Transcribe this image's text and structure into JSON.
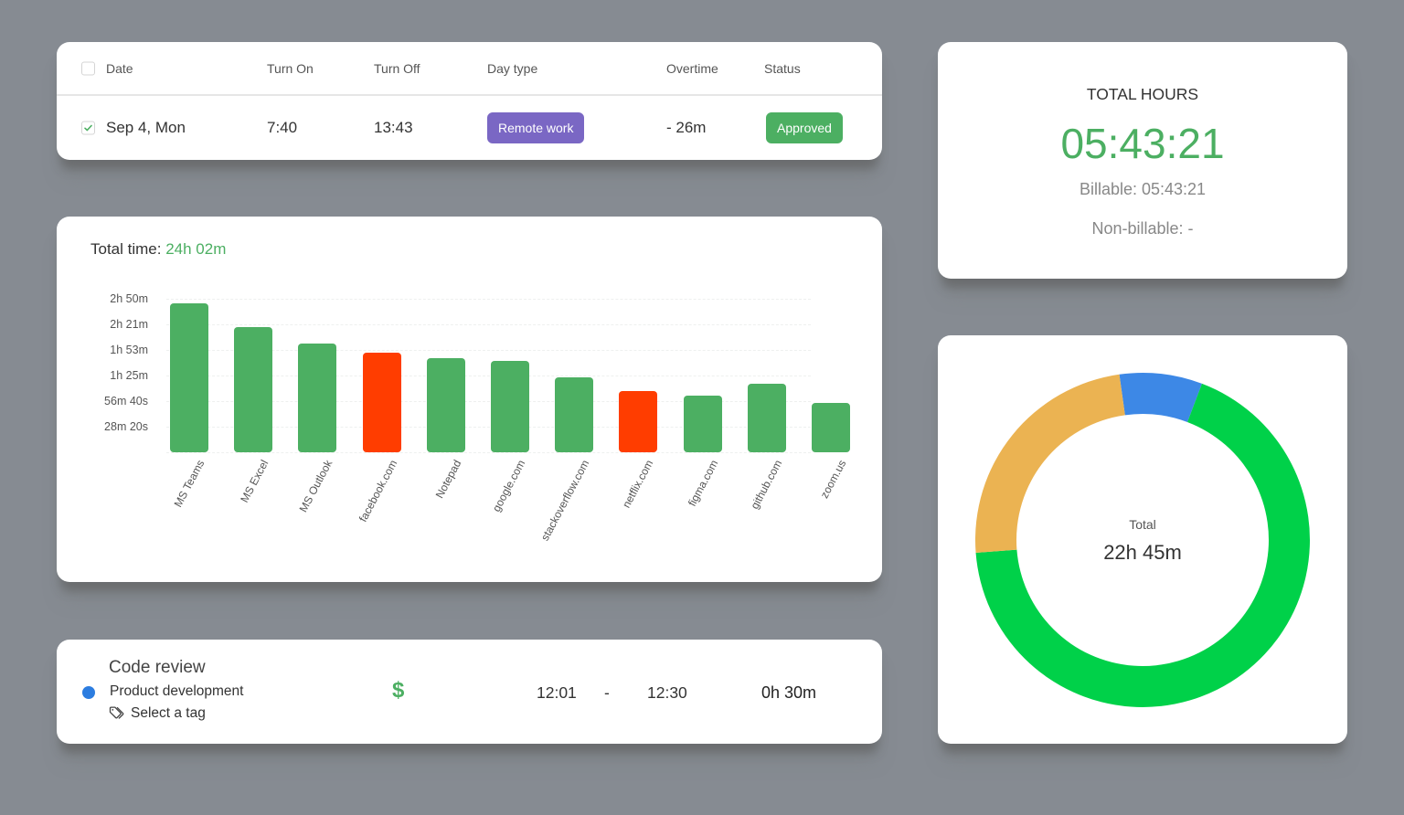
{
  "timesheet": {
    "columns": [
      "Date",
      "Turn On",
      "Turn Off",
      "Day type",
      "Overtime",
      "Status"
    ],
    "rows": [
      {
        "checked": true,
        "date": "Sep 4, Mon",
        "turn_on": "7:40",
        "turn_off": "13:43",
        "day_type": "Remote work",
        "overtime": "- 26m",
        "status": "Approved"
      }
    ]
  },
  "activity_chart": {
    "total_label": "Total time:",
    "total_value": "24h 02m"
  },
  "task": {
    "title": "Code review",
    "project": "Product development",
    "project_color": "#2c7de0",
    "tag_placeholder": "Select a tag",
    "billable_icon": "dollar-icon",
    "start": "12:01",
    "separator": "-",
    "end": "12:30",
    "duration": "0h 30m"
  },
  "total_hours": {
    "title": "TOTAL HOURS",
    "value": "05:43:21",
    "billable": "Billable: 05:43:21",
    "non_billable": "Non-billable: -"
  },
  "donut": {
    "center_label": "Total",
    "center_value": "22h 45m"
  },
  "colors": {
    "productive": "#4caf62",
    "unproductive": "#ff3d00",
    "accent_blue": "#3a8ee6",
    "day_type_purple": "#7a67c4",
    "donut_green": "#00d149",
    "donut_orange": "#ebb352",
    "donut_blue": "#3d88e6"
  },
  "chart_data": [
    {
      "type": "bar",
      "title": "Total time: 24h 02m",
      "xlabel": "",
      "ylabel": "",
      "categories": [
        "MS Teams",
        "MS Excel",
        "MS Outlook",
        "facebook.com",
        "Notepad",
        "google.com",
        "stackoverflow.com",
        "netflix.com",
        "figma.com",
        "github.com",
        "zoom.us"
      ],
      "values_minutes": [
        165,
        139,
        120,
        110,
        104,
        101,
        83,
        68,
        63,
        76,
        55
      ],
      "bar_colors": [
        "#4caf62",
        "#4caf62",
        "#4caf62",
        "#ff3d00",
        "#4caf62",
        "#4caf62",
        "#4caf62",
        "#ff3d00",
        "#4caf62",
        "#4caf62",
        "#4caf62"
      ],
      "y_ticks": [
        "28m 20s",
        "56m 40s",
        "1h 25m",
        "1h 53m",
        "2h 21m",
        "2h 50m"
      ],
      "y_tick_minutes": [
        28.33,
        56.67,
        85,
        113.33,
        141.67,
        170
      ],
      "ylim_minutes": [
        0,
        170
      ],
      "grid": true,
      "legend": "none"
    },
    {
      "type": "pie",
      "variant": "donut",
      "title": "",
      "center_label": "Total",
      "center_value": "22h 45m",
      "slices": [
        {
          "color": "#3d88e6",
          "percent": 8
        },
        {
          "color": "#00d149",
          "percent": 68
        },
        {
          "color": "#ebb352",
          "percent": 24
        }
      ],
      "legend": "none"
    }
  ]
}
